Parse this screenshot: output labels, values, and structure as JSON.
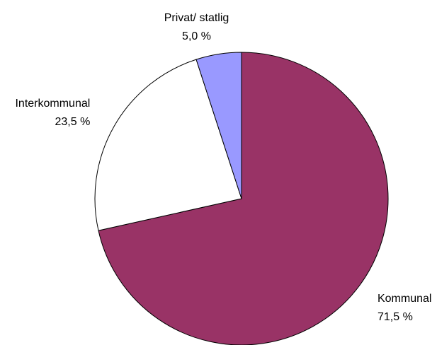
{
  "chart_data": {
    "type": "pie",
    "categories": [
      "Kommunal",
      "Interkommunal",
      "Privat/ statlig"
    ],
    "values": [
      71.5,
      23.5,
      5.0
    ],
    "value_labels": [
      "71,5 %",
      "23,5 %",
      "5,0 %"
    ],
    "colors": [
      "#993366",
      "#ffffff",
      "#9999ff"
    ]
  }
}
